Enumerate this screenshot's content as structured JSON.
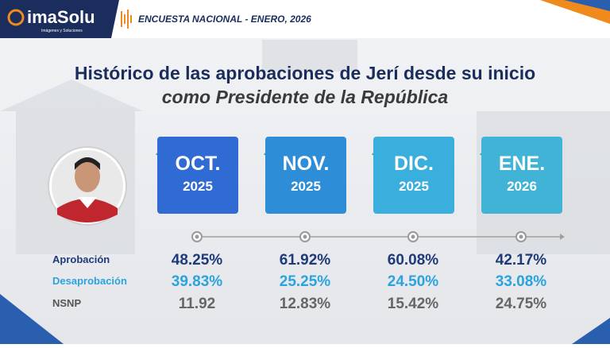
{
  "header": {
    "brand": "imaSolu",
    "tagline": "Imágenes y Soluciones",
    "survey": "ENCUESTA NACIONAL - ENERO, 2026"
  },
  "title": {
    "line1": "Histórico de las aprobaciones de Jerí desde su inicio",
    "line2": "como Presidente de la República"
  },
  "periods": [
    {
      "month": "OCT.",
      "year": "2025"
    },
    {
      "month": "NOV.",
      "year": "2025"
    },
    {
      "month": "DIC.",
      "year": "2025"
    },
    {
      "month": "ENE.",
      "year": "2026"
    }
  ],
  "rows": [
    {
      "label": "Aprobación",
      "values": [
        "48.25%",
        "61.92%",
        "60.08%",
        "42.17%"
      ]
    },
    {
      "label": "Desaprobación",
      "values": [
        "39.83%",
        "25.25%",
        "24.50%",
        "33.08%"
      ]
    },
    {
      "label": "NSNP",
      "values": [
        "11.92",
        "12.83%",
        "15.42%",
        "24.75%"
      ]
    }
  ]
}
